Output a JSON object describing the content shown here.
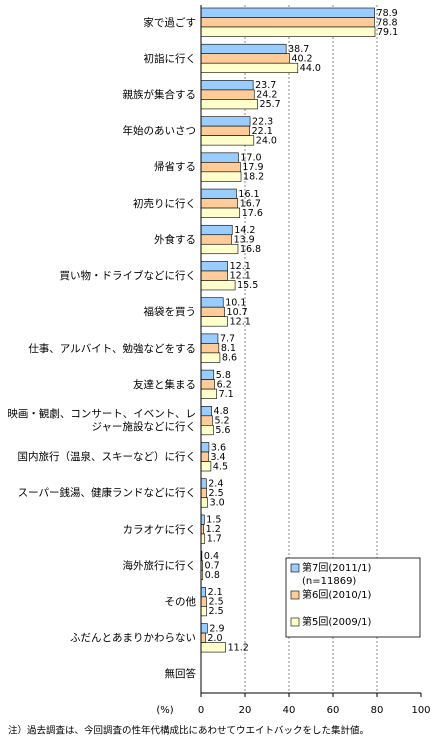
{
  "chart_data": {
    "type": "hbar",
    "categories": [
      "家で過ごす",
      "初詣に行く",
      "親族が集合する",
      "年始のあいさつ",
      "帰省する",
      "初売りに行く",
      "外食する",
      "買い物・ドライブなどに行く",
      "福袋を買う",
      "仕事、アルバイト、勉強などをする",
      "友達と集まる",
      "映画・観劇、コンサート、イベント、レジャー施設などに行く",
      "国内旅行（温泉、スキーなど）に行く",
      "スーパー銭湯、健康ランドなどに行く",
      "カラオケに行く",
      "海外旅行に行く",
      "その他",
      "ふだんとあまりかわらない",
      "無回答"
    ],
    "series": [
      {
        "name": "第7回(2011/1)",
        "note": "(n=11869)",
        "color": "#99ccff",
        "values": [
          78.9,
          38.7,
          23.7,
          22.3,
          17.0,
          16.1,
          14.2,
          12.1,
          10.1,
          7.7,
          5.8,
          4.8,
          3.6,
          2.4,
          1.5,
          0.4,
          2.1,
          2.9,
          null
        ],
        "value_labels": [
          "78.9",
          "38.7",
          "23.7",
          "22.3",
          "17.0",
          "16.1",
          "14.2",
          "12.1",
          "10.1",
          "7.7",
          "5.8",
          "4.8",
          "3.6",
          "2.4",
          "1.5",
          "0.4",
          "2.1",
          "2.9",
          null
        ]
      },
      {
        "name": "第6回(2010/1)",
        "color": "#ffcc99",
        "values": [
          78.8,
          40.2,
          24.2,
          22.1,
          17.9,
          16.7,
          13.9,
          12.1,
          10.7,
          8.1,
          6.2,
          5.2,
          3.4,
          2.5,
          1.2,
          0.7,
          2.5,
          2.0,
          null
        ],
        "value_labels": [
          "78.8",
          "40.2",
          "24.2",
          "22.1",
          "17.9",
          "16.7",
          "13.9",
          "12.1",
          "10.7",
          "8.1",
          "6.2",
          "5.2",
          "3.4",
          "2.5",
          "1.2",
          "0.7",
          "2.5",
          "2.0",
          null
        ]
      },
      {
        "name": "第5回(2009/1)",
        "color": "#ffffcc",
        "values": [
          79.1,
          44.0,
          25.7,
          24.0,
          18.2,
          17.6,
          16.8,
          15.5,
          12.1,
          8.6,
          7.1,
          5.6,
          4.5,
          3.0,
          1.7,
          0.8,
          2.5,
          11.2,
          null
        ],
        "value_labels": [
          "79.1",
          "44.0",
          "25.7",
          "24.0",
          "18.2",
          "17.6",
          "16.8",
          "15.5",
          "12.1",
          "8.6",
          "7.1",
          "5.6",
          "4.5",
          "3.0",
          "1.7",
          "0.8",
          "2.5",
          "11.2",
          null
        ]
      }
    ],
    "xlim": [
      0,
      100
    ],
    "xticks": [
      0,
      20,
      40,
      60,
      80,
      100
    ],
    "x_label": "(%)",
    "grid": true,
    "legend": "lower-right",
    "footnote": "注）過去調査は、今回調査の性年代構成比にあわせてウエイトバックをした集計値。"
  }
}
